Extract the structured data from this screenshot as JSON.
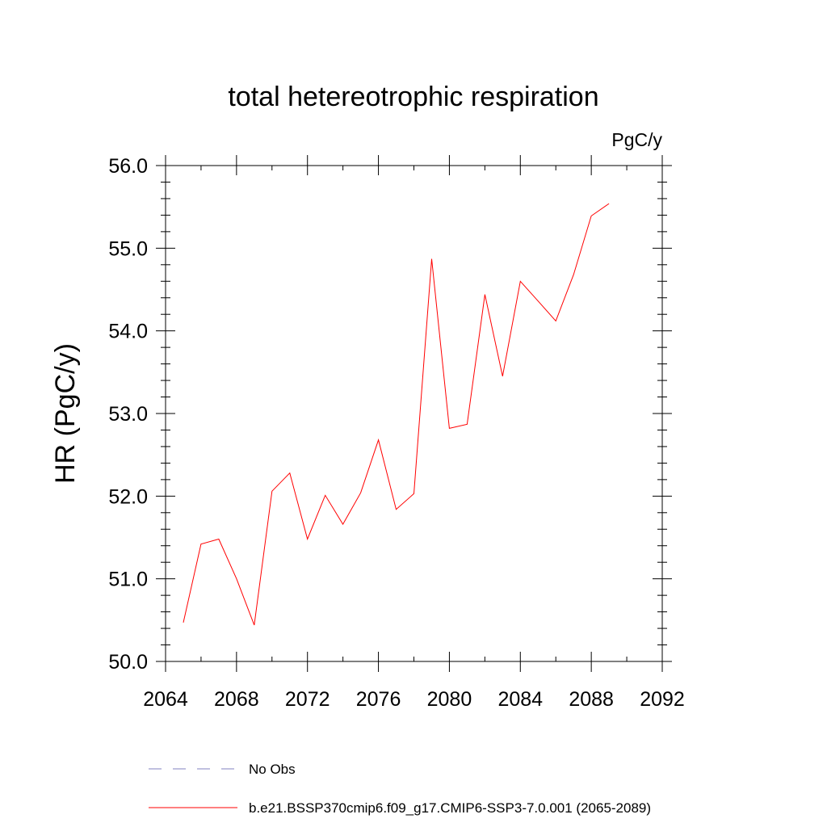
{
  "chart_data": {
    "type": "line",
    "title": "total hetereotrophic respiration",
    "units_label": "PgC/y",
    "ylabel": "HR  (PgC/y)",
    "xlabel": "",
    "xlim": [
      2064,
      2092
    ],
    "ylim": [
      50.0,
      56.0
    ],
    "x_ticks": [
      2064,
      2068,
      2072,
      2076,
      2080,
      2084,
      2088,
      2092
    ],
    "x_tick_labels": [
      "2064",
      "2068",
      "2072",
      "2076",
      "2080",
      "2084",
      "2088",
      "2092"
    ],
    "y_ticks": [
      50,
      51,
      52,
      53,
      54,
      55,
      56
    ],
    "y_tick_labels": [
      "50.0",
      "51.0",
      "52.0",
      "53.0",
      "54.0",
      "55.0",
      "56.0"
    ],
    "grid": false,
    "legend_position": "bottom",
    "series": [
      {
        "name": "b.e21.BSSP370cmip6.f09_g17.CMIP6-SSP3-7.0.001 (2065-2089)",
        "color": "#ff0000",
        "style": "solid",
        "x": [
          2065,
          2066,
          2067,
          2068,
          2069,
          2070,
          2071,
          2072,
          2073,
          2074,
          2075,
          2076,
          2077,
          2078,
          2079,
          2080,
          2081,
          2082,
          2083,
          2084,
          2085,
          2086,
          2087,
          2088,
          2089
        ],
        "y": [
          50.47,
          51.42,
          51.48,
          51.0,
          50.44,
          52.06,
          52.28,
          51.48,
          52.01,
          51.66,
          52.04,
          52.68,
          51.84,
          52.03,
          54.87,
          52.82,
          52.87,
          54.44,
          53.45,
          54.6,
          54.36,
          54.12,
          54.68,
          55.39,
          55.54
        ]
      }
    ],
    "legend": [
      {
        "label": "No Obs",
        "color": "#8080c0",
        "style": "dashed"
      },
      {
        "label": "b.e21.BSSP370cmip6.f09_g17.CMIP6-SSP3-7.0.001 (2065-2089)",
        "color": "#ff0000",
        "style": "solid"
      }
    ]
  }
}
